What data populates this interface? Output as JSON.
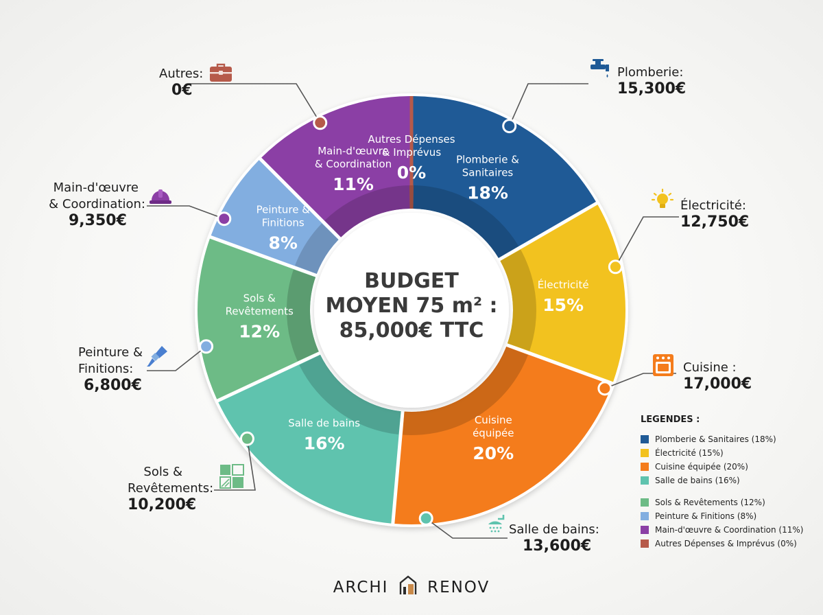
{
  "chart_data": {
    "type": "pie",
    "title_lines": [
      "BUDGET",
      "MOYEN 75 m² :",
      "85,000€ TTC"
    ],
    "slices": [
      {
        "key": "plomberie",
        "label_lines": [
          "Plomberie &",
          "Sanitaires"
        ],
        "pct_text": "18%",
        "value": 18,
        "amount_name": "Plomberie:",
        "amount": "15,300€",
        "color": "#1f5a96",
        "icon": "faucet-icon"
      },
      {
        "key": "electricite",
        "label_lines": [
          "Électricité"
        ],
        "pct_text": "15%",
        "value": 15,
        "amount_name": "Électricité:",
        "amount": "12,750€",
        "color": "#f2c21f",
        "icon": "light-bulb-icon"
      },
      {
        "key": "cuisine",
        "label_lines": [
          "Cuisine",
          "équipée"
        ],
        "pct_text": "20%",
        "value": 20,
        "amount_name": "Cuisine :",
        "amount": "17,000€",
        "color": "#f47c1c",
        "icon": "oven-icon"
      },
      {
        "key": "salle-de-bains",
        "label_lines": [
          "Salle de bains"
        ],
        "pct_text": "16%",
        "value": 16,
        "amount_name": "Salle de bains:",
        "amount": "13,600€",
        "color": "#5fc3ae",
        "icon": "shower-icon"
      },
      {
        "key": "sols",
        "label_lines": [
          "Sols &",
          "Revêtements"
        ],
        "pct_text": "12%",
        "value": 12,
        "amount_name": "Sols & Revêtements:",
        "amount_name_lines": [
          "Sols &",
          "Revêtements:"
        ],
        "amount": "10,200€",
        "color": "#6dbb86",
        "icon": "floor-tiles-icon"
      },
      {
        "key": "peinture",
        "label_lines": [
          "Peinture &",
          "Finitions"
        ],
        "pct_text": "8%",
        "value": 8,
        "amount_name": "Peinture & Finitions:",
        "amount_name_lines": [
          "Peinture &",
          "Finitions:"
        ],
        "amount": "6,800€",
        "color": "#82aee0",
        "icon": "paint-brush-icon"
      },
      {
        "key": "main-oeuvre",
        "label_lines": [
          "Main-d'œuvre",
          "& Coordination"
        ],
        "pct_text": "11%",
        "value": 11,
        "amount_name": "Main-d'œuvre & Coordination:",
        "amount_name_lines": [
          "Main-d'œuvre",
          "& Coordination:"
        ],
        "amount": "9,350€",
        "color": "#8b3fa5",
        "icon": "hard-hat-icon"
      },
      {
        "key": "autres",
        "label_lines": [
          "Autres Dépenses",
          "& Imprévus"
        ],
        "pct_text": "0%",
        "value": 0,
        "amount_name": "Autres:",
        "amount": "0€",
        "color": "#b65a4a",
        "icon": "toolbox-icon"
      }
    ],
    "legend": {
      "title": "LEGENDES :",
      "placement": "bottom-right",
      "items": [
        {
          "label": "Plomberie & Sanitaires (18%)",
          "color": "#1f5a96"
        },
        {
          "label": "Électricité (15%)",
          "color": "#f2c21f"
        },
        {
          "label": "Cuisine équipée (20%)",
          "color": "#f47c1c"
        },
        {
          "label": "Salle de bains (16%)",
          "color": "#5fc3ae"
        },
        {
          "label": "Sols & Revêtements (12%)",
          "color": "#6dbb86"
        },
        {
          "label": "Peinture & Finitions (8%)",
          "color": "#82aee0"
        },
        {
          "label": "Main-d'œuvre & Coordination (11%)",
          "color": "#8b3fa5"
        },
        {
          "label": "Autres Dépenses & Imprévus (0%)",
          "color": "#b65a4a"
        }
      ]
    }
  },
  "brand": {
    "left": "ARCHI",
    "right": "RENOV"
  }
}
